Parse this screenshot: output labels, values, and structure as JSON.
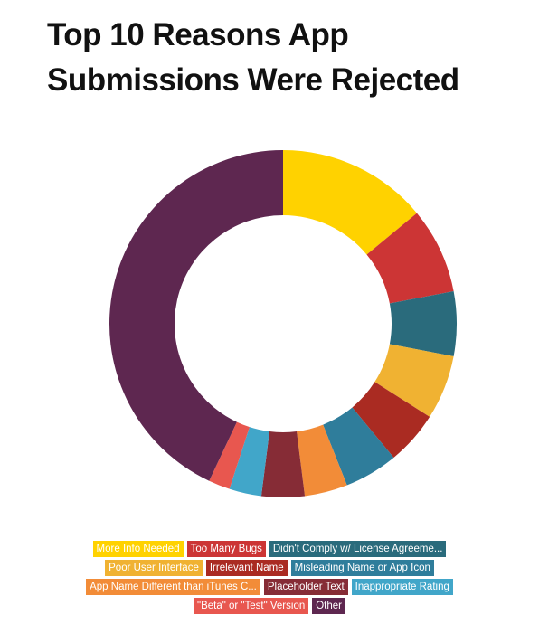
{
  "chart_data": {
    "type": "donut",
    "title": "Top 10 Reasons App Submissions Were Rejected",
    "categories": [
      "More Info Needed",
      "Too Many Bugs",
      "Didn't Comply w/ License Agreeme...",
      "Poor User Interface",
      "Irrelevant Name",
      "Misleading Name or App Icon",
      "App Name Different than iTunes C...",
      "Placeholder Text",
      "Inappropriate Rating",
      "\"Beta\" or \"Test\" Version",
      "Other"
    ],
    "values": [
      14,
      8,
      6,
      6,
      5,
      5,
      4,
      4,
      3,
      2,
      43
    ],
    "colors": [
      "#ffd200",
      "#cc3535",
      "#2a6b7c",
      "#f0b232",
      "#aa2b22",
      "#2f7d9b",
      "#f28c38",
      "#862c36",
      "#41a6c9",
      "#e8574f",
      "#5e2750"
    ]
  }
}
